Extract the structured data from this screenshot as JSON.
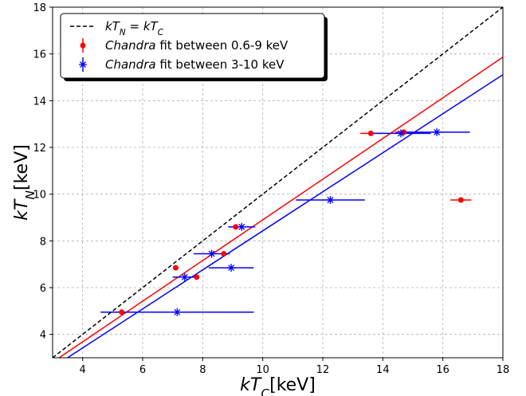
{
  "chart_data": {
    "type": "scatter",
    "xlabel": {
      "italic": "kT",
      "sub": "C",
      "unit": "[keV]"
    },
    "ylabel": {
      "italic": "kT",
      "sub": "N",
      "unit": "[keV]"
    },
    "xlim": [
      3,
      18
    ],
    "ylim": [
      3,
      18
    ],
    "xticks": [
      4,
      6,
      8,
      10,
      12,
      14,
      16,
      18
    ],
    "yticks": [
      4,
      6,
      8,
      10,
      12,
      14,
      16,
      18
    ],
    "grid": true,
    "legend_position": "top-left",
    "legend": [
      {
        "key": "identity",
        "text": "kT_N = kT_C",
        "parts": [
          [
            "i",
            "kT"
          ],
          [
            "sub",
            "N"
          ],
          [
            "t",
            " = "
          ],
          [
            "i",
            "kT"
          ],
          [
            "sub",
            "C"
          ]
        ]
      },
      {
        "key": "red",
        "text": "Chandra fit between 0.6-9 keV",
        "parts": [
          [
            "i",
            "Chandra"
          ],
          [
            "t",
            " fit between 0.6-9 keV"
          ]
        ]
      },
      {
        "key": "blue",
        "text": "Chandra fit between 3-10 keV",
        "parts": [
          [
            "i",
            "Chandra"
          ],
          [
            "t",
            " fit between 3-10 keV"
          ]
        ]
      }
    ],
    "lines": [
      {
        "key": "identity",
        "kind": "dashed",
        "color": "#000000",
        "slope": 1.0,
        "intercept": 0.0
      },
      {
        "key": "red",
        "kind": "solid",
        "color": "#ff0000",
        "slope": 0.87,
        "intercept": 0.2
      },
      {
        "key": "blue",
        "kind": "solid",
        "color": "#0000ff",
        "slope": 0.835,
        "intercept": 0.08
      }
    ],
    "series": [
      {
        "key": "red",
        "name": "Chandra fit between 0.6-9 keV",
        "color": "#ff0000",
        "marker": "circle",
        "points": [
          {
            "x": 5.3,
            "y": 4.95,
            "xerr": 0.0
          },
          {
            "x": 7.1,
            "y": 6.85,
            "xerr": 0.0
          },
          {
            "x": 7.8,
            "y": 6.45,
            "xerr": 0.0
          },
          {
            "x": 8.7,
            "y": 7.45,
            "xerr": 0.0
          },
          {
            "x": 9.1,
            "y": 8.6,
            "xerr": 0.2
          },
          {
            "x": 13.6,
            "y": 12.6,
            "xerr": 0.35
          },
          {
            "x": 14.7,
            "y": 12.65,
            "xerr": 0.3
          },
          {
            "x": 16.6,
            "y": 9.75,
            "xerr": 0.35
          }
        ]
      },
      {
        "key": "blue",
        "name": "Chandra fit between 3-10 keV",
        "color": "#0000ff",
        "marker": "star",
        "points": [
          {
            "x": 7.15,
            "y": 4.95,
            "xerr": 2.55
          },
          {
            "x": 7.4,
            "y": 6.45,
            "xerr": 0.4
          },
          {
            "x": 8.3,
            "y": 7.45,
            "xerr": 0.6
          },
          {
            "x": 8.95,
            "y": 6.85,
            "xerr": 0.75
          },
          {
            "x": 9.3,
            "y": 8.6,
            "xerr": 0.45
          },
          {
            "x": 12.25,
            "y": 9.75,
            "xerr": 1.15
          },
          {
            "x": 14.6,
            "y": 12.6,
            "xerr": 1.0
          },
          {
            "x": 15.8,
            "y": 12.65,
            "xerr": 1.1
          }
        ]
      }
    ]
  }
}
